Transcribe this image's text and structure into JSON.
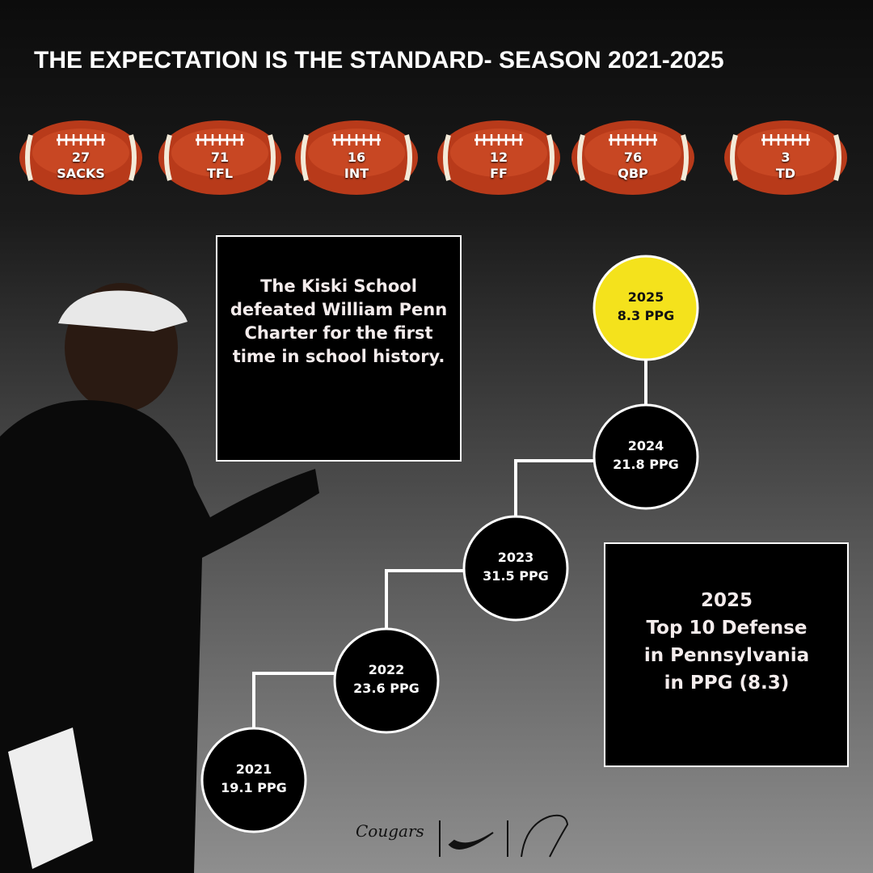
{
  "title": "THE EXPECTATION IS THE STANDARD- SEASON 2021-2025",
  "stats": [
    {
      "value": "27",
      "label": "SACKS"
    },
    {
      "value": "71",
      "label": "TFL"
    },
    {
      "value": "16",
      "label": "INT"
    },
    {
      "value": "12",
      "label": "FF"
    },
    {
      "value": "76",
      "label": "QBP"
    },
    {
      "value": "3",
      "label": "TD"
    }
  ],
  "note": "The Kiski School defeated William Penn Charter for the first time in school history.",
  "timeline": [
    {
      "year": "2021",
      "ppg": "19.1 PPG"
    },
    {
      "year": "2022",
      "ppg": "23.6 PPG"
    },
    {
      "year": "2023",
      "ppg": "31.5 PPG"
    },
    {
      "year": "2024",
      "ppg": "21.8 PPG"
    },
    {
      "year": "2025",
      "ppg": "8.3 PPG"
    }
  ],
  "highlight": [
    "2025",
    "Top 10 Defense",
    "in Pennsylvania",
    "in PPG (8.3)"
  ],
  "footer": {
    "brand": "Cougars"
  }
}
